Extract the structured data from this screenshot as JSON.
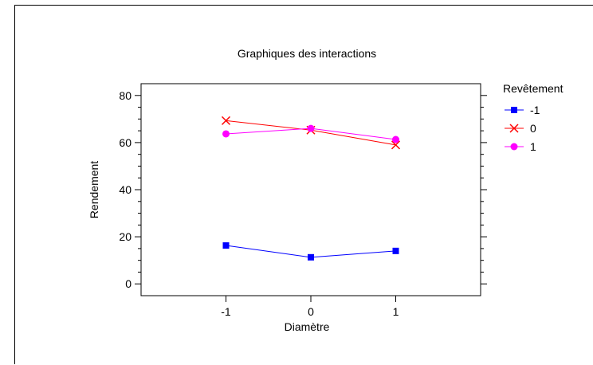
{
  "chart_data": {
    "type": "line",
    "title": "Graphiques des interactions",
    "xlabel": "Diamètre",
    "ylabel": "Rendement",
    "categories": [
      "-1",
      "0",
      "1"
    ],
    "xlim": [
      -2,
      2
    ],
    "ylim": [
      -5,
      85
    ],
    "yticks": [
      0,
      20,
      40,
      60,
      80
    ],
    "ytick_labels": [
      "0",
      "20",
      "40",
      "60",
      "80"
    ],
    "grid": false,
    "legend": {
      "title": "Revêtement",
      "placement": "right"
    },
    "series": [
      {
        "name": "-1",
        "values": [
          16.3,
          11.3,
          14.0
        ],
        "color": "#0000FF",
        "marker": "square"
      },
      {
        "name": "0",
        "values": [
          69.3,
          65.3,
          59.0
        ],
        "color": "#FF0000",
        "marker": "x"
      },
      {
        "name": "1",
        "values": [
          63.7,
          66.0,
          61.3
        ],
        "color": "#FF00FF",
        "marker": "circle"
      }
    ]
  }
}
